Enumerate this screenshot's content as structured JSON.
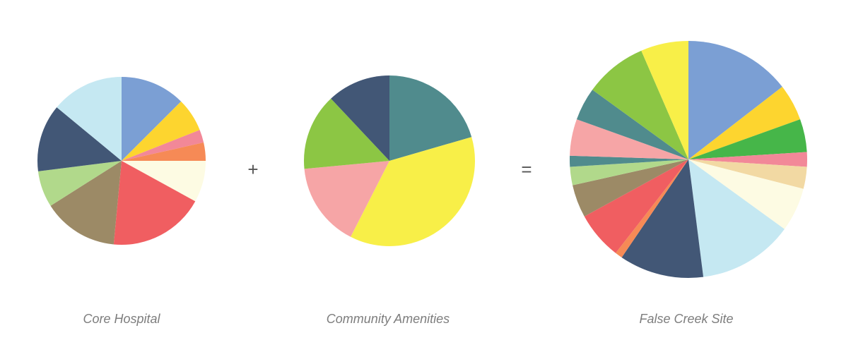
{
  "equation": {
    "plus": "+",
    "equals": "="
  },
  "chart_data": [
    {
      "type": "pie",
      "title": "Core Hospital",
      "slices": [
        {
          "value": 12.5,
          "color": "#7b9fd4"
        },
        {
          "value": 6.5,
          "color": "#fdd52f"
        },
        {
          "value": 2.5,
          "color": "#f28898"
        },
        {
          "value": 3.5,
          "color": "#f68a56"
        },
        {
          "value": 8.0,
          "color": "#fdfbe3"
        },
        {
          "value": 18.5,
          "color": "#f05e61"
        },
        {
          "value": 14.5,
          "color": "#9c8a66"
        },
        {
          "value": 7.0,
          "color": "#b1d98b"
        },
        {
          "value": 13.0,
          "color": "#425776"
        },
        {
          "value": 14.0,
          "color": "#c5e8f2"
        }
      ]
    },
    {
      "type": "pie",
      "title": "Community Amenities",
      "slices": [
        {
          "value": 20.5,
          "color": "#508b8d"
        },
        {
          "value": 37.0,
          "color": "#f8ef48"
        },
        {
          "value": 16.0,
          "color": "#f6a5a6"
        },
        {
          "value": 14.5,
          "color": "#8cc644"
        },
        {
          "value": 12.0,
          "color": "#425776"
        }
      ]
    },
    {
      "type": "pie",
      "title": "False Creek Site",
      "slices": [
        {
          "value": 14.5,
          "color": "#7b9fd4"
        },
        {
          "value": 5.0,
          "color": "#fdd52f"
        },
        {
          "value": 4.5,
          "color": "#46b649"
        },
        {
          "value": 2.0,
          "color": "#f28898"
        },
        {
          "value": 3.0,
          "color": "#f2d9a3"
        },
        {
          "value": 6.0,
          "color": "#fdfbe3"
        },
        {
          "value": 13.0,
          "color": "#c5e8f2"
        },
        {
          "value": 11.5,
          "color": "#425776"
        },
        {
          "value": 1.0,
          "color": "#f68a56"
        },
        {
          "value": 6.5,
          "color": "#f05e61"
        },
        {
          "value": 4.5,
          "color": "#9c8a66"
        },
        {
          "value": 2.5,
          "color": "#b1d98b"
        },
        {
          "value": 1.5,
          "color": "#508b8d"
        },
        {
          "value": 5.0,
          "color": "#f6a5a6"
        },
        {
          "value": 4.5,
          "color": "#508b8d"
        },
        {
          "value": 8.5,
          "color": "#8cc644"
        },
        {
          "value": 6.5,
          "color": "#f8ef48"
        }
      ]
    }
  ]
}
